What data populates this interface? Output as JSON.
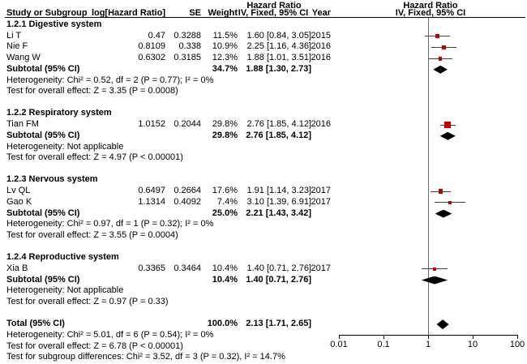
{
  "header": {
    "col_study": "Study or Subgroup",
    "col_loghr": "log[Hazard Ratio]",
    "col_se": "SE",
    "col_weight": "Weight",
    "col_hr_title": "Hazard Ratio",
    "col_hr_subtitle": "IV, Fixed, 95% CI",
    "col_year": "Year",
    "plot_hr_title": "Hazard Ratio",
    "plot_hr_subtitle": "IV, Fixed, 95% CI"
  },
  "colors": {
    "marker_red": "#c00000",
    "diamond_black": "#000000",
    "ci_line": "#3f3f3f",
    "ref_line": "#6b6b6b"
  },
  "chart_data": {
    "type": "forest",
    "effect_measure": "Hazard Ratio",
    "model": "IV, Fixed, 95% CI",
    "x_scale": "log10",
    "x_ticks": [
      0.01,
      0.1,
      1,
      10,
      100
    ],
    "x_tick_labels": [
      "0.01",
      "0.1",
      "1",
      "10",
      "100"
    ],
    "rows": [
      {
        "type": "section",
        "label": "1.2.1 Digestive system"
      },
      {
        "type": "study",
        "label": "Li T",
        "loghr": "0.47",
        "se": "0.3288",
        "weight": "11.5%",
        "hr_ci": "1.60 [0.84, 3.05]",
        "year": "2015",
        "hr": 1.6,
        "lo": 0.84,
        "hi": 3.05,
        "w": 11.5
      },
      {
        "type": "study",
        "label": "Nie F",
        "loghr": "0.8109",
        "se": "0.338",
        "weight": "10.9%",
        "hr_ci": "2.25 [1.16, 4.36]",
        "year": "2016",
        "hr": 2.25,
        "lo": 1.16,
        "hi": 4.36,
        "w": 10.9
      },
      {
        "type": "study",
        "label": "Wang W",
        "loghr": "0.6302",
        "se": "0.3185",
        "weight": "12.3%",
        "hr_ci": "1.88 [1.01, 3.51]",
        "year": "2016",
        "hr": 1.88,
        "lo": 1.01,
        "hi": 3.51,
        "w": 12.3
      },
      {
        "type": "subtotal",
        "label": "Subtotal (95% CI)",
        "weight": "34.7%",
        "hr_ci": "1.88 [1.30, 2.73]",
        "hr": 1.88,
        "lo": 1.3,
        "hi": 2.73
      },
      {
        "type": "stat",
        "label": "Heterogeneity: Chi² = 0.52, df = 2 (P = 0.77); I² = 0%"
      },
      {
        "type": "stat",
        "label": "Test for overall effect: Z = 3.35 (P = 0.0008)"
      },
      {
        "type": "gap"
      },
      {
        "type": "section",
        "label": "1.2.2 Respiratory system"
      },
      {
        "type": "study",
        "label": "Tian FM",
        "loghr": "1.0152",
        "se": "0.2044",
        "weight": "29.8%",
        "hr_ci": "2.76 [1.85, 4.12]",
        "year": "2016",
        "hr": 2.76,
        "lo": 1.85,
        "hi": 4.12,
        "w": 29.8
      },
      {
        "type": "subtotal",
        "label": "Subtotal (95% CI)",
        "weight": "29.8%",
        "hr_ci": "2.76 [1.85, 4.12]",
        "hr": 2.76,
        "lo": 1.85,
        "hi": 4.12
      },
      {
        "type": "stat",
        "label": "Heterogeneity: Not applicable"
      },
      {
        "type": "stat",
        "label": "Test for overall effect: Z = 4.97 (P < 0.00001)"
      },
      {
        "type": "gap"
      },
      {
        "type": "section",
        "label": "1.2.3 Nervous system"
      },
      {
        "type": "study",
        "label": "Lv QL",
        "loghr": "0.6497",
        "se": "0.2664",
        "weight": "17.6%",
        "hr_ci": "1.91 [1.14, 3.23]",
        "year": "2017",
        "hr": 1.91,
        "lo": 1.14,
        "hi": 3.23,
        "w": 17.6
      },
      {
        "type": "study",
        "label": "Gao K",
        "loghr": "1.1314",
        "se": "0.4092",
        "weight": "7.4%",
        "hr_ci": "3.10 [1.39, 6.91]",
        "year": "2017",
        "hr": 3.1,
        "lo": 1.39,
        "hi": 6.91,
        "w": 7.4
      },
      {
        "type": "subtotal",
        "label": "Subtotal (95% CI)",
        "weight": "25.0%",
        "hr_ci": "2.21 [1.43, 3.42]",
        "hr": 2.21,
        "lo": 1.43,
        "hi": 3.42
      },
      {
        "type": "stat",
        "label": "Heterogeneity: Chi² = 0.97, df = 1 (P = 0.32); I² = 0%"
      },
      {
        "type": "stat",
        "label": "Test for overall effect: Z = 3.55 (P = 0.0004)"
      },
      {
        "type": "gap"
      },
      {
        "type": "section",
        "label": "1.2.4 Reproductive system"
      },
      {
        "type": "study",
        "label": "Xia B",
        "loghr": "0.3365",
        "se": "0.3464",
        "weight": "10.4%",
        "hr_ci": "1.40 [0.71, 2.76]",
        "year": "2017",
        "hr": 1.4,
        "lo": 0.71,
        "hi": 2.76,
        "w": 10.4
      },
      {
        "type": "subtotal",
        "label": "Subtotal (95% CI)",
        "weight": "10.4%",
        "hr_ci": "1.40 [0.71, 2.76]",
        "hr": 1.4,
        "lo": 0.71,
        "hi": 2.76
      },
      {
        "type": "stat",
        "label": "Heterogeneity: Not applicable"
      },
      {
        "type": "stat",
        "label": "Test for overall effect: Z = 0.97 (P = 0.33)"
      },
      {
        "type": "gap"
      },
      {
        "type": "total",
        "label": "Total (95% CI)",
        "weight": "100.0%",
        "hr_ci": "2.13 [1.71, 2.65]",
        "hr": 2.13,
        "lo": 1.71,
        "hi": 2.65
      },
      {
        "type": "stat",
        "label": "Heterogeneity: Chi² = 5.01, df = 6 (P = 0.54); I² = 0%"
      },
      {
        "type": "stat",
        "label": "Test for overall effect: Z = 6.78 (P < 0.00001)"
      },
      {
        "type": "stat",
        "label": "Test for subgroup differences: Chi² = 3.52, df = 3 (P = 0.32), I² = 14.7%"
      }
    ]
  }
}
